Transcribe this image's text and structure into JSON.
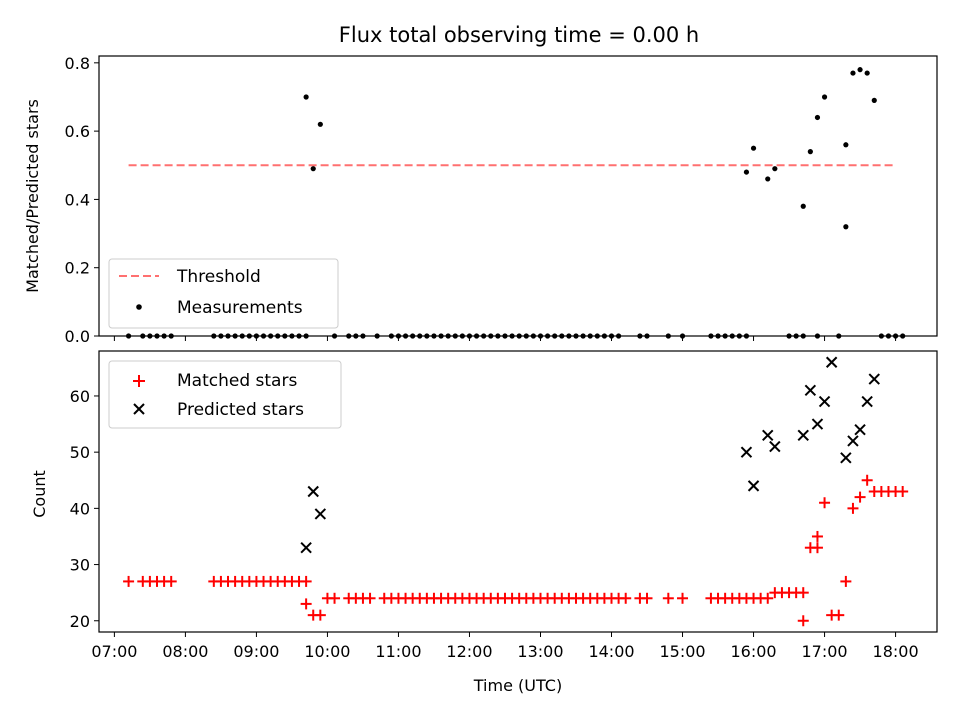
{
  "title": "Flux total observing time = 0.00 h",
  "chart_data": [
    {
      "type": "scatter",
      "ylabel": "Matched/Predicted stars",
      "xlabel": "",
      "xlim": [
        "06:47",
        "18:35"
      ],
      "ylim": [
        0,
        0.82
      ],
      "y_ticks": [
        0.0,
        0.2,
        0.4,
        0.6,
        0.8
      ],
      "y_tick_labels": [
        "0.0",
        "0.2",
        "0.4",
        "0.6",
        "0.8"
      ],
      "legend": {
        "placement": "lower-left",
        "entries": [
          "Threshold",
          "Measurements"
        ]
      },
      "threshold": {
        "name": "Threshold",
        "value": 0.5,
        "x_range": [
          "07:12",
          "18:00"
        ],
        "color": "#ff7070",
        "style": "dashed"
      },
      "series": [
        {
          "name": "Measurements",
          "color": "#000000",
          "marker": "dot",
          "points": [
            [
              "07:12",
              0
            ],
            [
              "07:24",
              0
            ],
            [
              "07:30",
              0
            ],
            [
              "07:36",
              0
            ],
            [
              "07:42",
              0
            ],
            [
              "07:48",
              0
            ],
            [
              "08:24",
              0
            ],
            [
              "08:30",
              0
            ],
            [
              "08:36",
              0
            ],
            [
              "08:42",
              0
            ],
            [
              "08:48",
              0
            ],
            [
              "08:54",
              0
            ],
            [
              "09:00",
              0
            ],
            [
              "09:06",
              0
            ],
            [
              "09:12",
              0
            ],
            [
              "09:18",
              0
            ],
            [
              "09:24",
              0
            ],
            [
              "09:30",
              0
            ],
            [
              "09:36",
              0
            ],
            [
              "09:42",
              0
            ],
            [
              "09:42",
              0.7
            ],
            [
              "09:48",
              0.49
            ],
            [
              "09:54",
              0.62
            ],
            [
              "10:06",
              0
            ],
            [
              "10:18",
              0
            ],
            [
              "10:24",
              0
            ],
            [
              "10:30",
              0
            ],
            [
              "10:42",
              0
            ],
            [
              "10:54",
              0
            ],
            [
              "11:00",
              0
            ],
            [
              "11:06",
              0
            ],
            [
              "11:12",
              0
            ],
            [
              "11:18",
              0
            ],
            [
              "11:24",
              0
            ],
            [
              "11:30",
              0
            ],
            [
              "11:36",
              0
            ],
            [
              "11:42",
              0
            ],
            [
              "11:48",
              0
            ],
            [
              "11:54",
              0
            ],
            [
              "12:00",
              0
            ],
            [
              "12:06",
              0
            ],
            [
              "12:12",
              0
            ],
            [
              "12:18",
              0
            ],
            [
              "12:24",
              0
            ],
            [
              "12:30",
              0
            ],
            [
              "12:36",
              0
            ],
            [
              "12:42",
              0
            ],
            [
              "12:48",
              0
            ],
            [
              "12:54",
              0
            ],
            [
              "13:00",
              0
            ],
            [
              "13:06",
              0
            ],
            [
              "13:12",
              0
            ],
            [
              "13:18",
              0
            ],
            [
              "13:24",
              0
            ],
            [
              "13:30",
              0
            ],
            [
              "13:36",
              0
            ],
            [
              "13:42",
              0
            ],
            [
              "13:48",
              0
            ],
            [
              "13:54",
              0
            ],
            [
              "14:00",
              0
            ],
            [
              "14:06",
              0
            ],
            [
              "14:24",
              0
            ],
            [
              "14:30",
              0
            ],
            [
              "14:48",
              0
            ],
            [
              "15:00",
              0
            ],
            [
              "15:24",
              0
            ],
            [
              "15:30",
              0
            ],
            [
              "15:36",
              0
            ],
            [
              "15:42",
              0
            ],
            [
              "15:48",
              0
            ],
            [
              "15:54",
              0
            ],
            [
              "15:54",
              0.48
            ],
            [
              "16:00",
              0.55
            ],
            [
              "16:12",
              0.46
            ],
            [
              "16:18",
              0.49
            ],
            [
              "16:30",
              0
            ],
            [
              "16:36",
              0
            ],
            [
              "16:42",
              0
            ],
            [
              "16:42",
              0.38
            ],
            [
              "16:48",
              0.54
            ],
            [
              "16:54",
              0
            ],
            [
              "16:54",
              0.64
            ],
            [
              "17:00",
              0.7
            ],
            [
              "17:12",
              0
            ],
            [
              "17:18",
              0.32
            ],
            [
              "17:18",
              0.56
            ],
            [
              "17:24",
              0.77
            ],
            [
              "17:30",
              0.78
            ],
            [
              "17:36",
              0.77
            ],
            [
              "17:42",
              0.69
            ],
            [
              "17:48",
              0
            ],
            [
              "17:54",
              0
            ],
            [
              "18:00",
              0
            ],
            [
              "18:06",
              0
            ]
          ]
        }
      ]
    },
    {
      "type": "scatter",
      "xlabel": "Time (UTC)",
      "ylabel": "Count",
      "xlim": [
        "06:47",
        "18:35"
      ],
      "ylim": [
        18,
        68
      ],
      "x_ticks": [
        "07:00",
        "08:00",
        "09:00",
        "10:00",
        "11:00",
        "12:00",
        "13:00",
        "14:00",
        "15:00",
        "16:00",
        "17:00",
        "18:00"
      ],
      "y_ticks": [
        20,
        30,
        40,
        50,
        60
      ],
      "y_tick_labels": [
        "20",
        "30",
        "40",
        "50",
        "60"
      ],
      "legend": {
        "placement": "top-left",
        "entries": [
          "Matched stars",
          "Predicted stars"
        ]
      },
      "series": [
        {
          "name": "Matched stars",
          "color": "#ff0000",
          "marker": "plus",
          "points": [
            [
              "07:12",
              27
            ],
            [
              "07:24",
              27
            ],
            [
              "07:30",
              27
            ],
            [
              "07:36",
              27
            ],
            [
              "07:42",
              27
            ],
            [
              "07:48",
              27
            ],
            [
              "08:24",
              27
            ],
            [
              "08:30",
              27
            ],
            [
              "08:36",
              27
            ],
            [
              "08:42",
              27
            ],
            [
              "08:48",
              27
            ],
            [
              "08:54",
              27
            ],
            [
              "09:00",
              27
            ],
            [
              "09:06",
              27
            ],
            [
              "09:12",
              27
            ],
            [
              "09:18",
              27
            ],
            [
              "09:24",
              27
            ],
            [
              "09:30",
              27
            ],
            [
              "09:36",
              27
            ],
            [
              "09:42",
              27
            ],
            [
              "09:42",
              23
            ],
            [
              "09:48",
              21
            ],
            [
              "09:54",
              21
            ],
            [
              "10:00",
              24
            ],
            [
              "10:06",
              24
            ],
            [
              "10:18",
              24
            ],
            [
              "10:24",
              24
            ],
            [
              "10:30",
              24
            ],
            [
              "10:36",
              24
            ],
            [
              "10:48",
              24
            ],
            [
              "10:54",
              24
            ],
            [
              "11:00",
              24
            ],
            [
              "11:06",
              24
            ],
            [
              "11:12",
              24
            ],
            [
              "11:18",
              24
            ],
            [
              "11:24",
              24
            ],
            [
              "11:30",
              24
            ],
            [
              "11:36",
              24
            ],
            [
              "11:42",
              24
            ],
            [
              "11:48",
              24
            ],
            [
              "11:54",
              24
            ],
            [
              "12:00",
              24
            ],
            [
              "12:06",
              24
            ],
            [
              "12:12",
              24
            ],
            [
              "12:18",
              24
            ],
            [
              "12:24",
              24
            ],
            [
              "12:30",
              24
            ],
            [
              "12:36",
              24
            ],
            [
              "12:42",
              24
            ],
            [
              "12:48",
              24
            ],
            [
              "12:54",
              24
            ],
            [
              "13:00",
              24
            ],
            [
              "13:06",
              24
            ],
            [
              "13:12",
              24
            ],
            [
              "13:18",
              24
            ],
            [
              "13:24",
              24
            ],
            [
              "13:30",
              24
            ],
            [
              "13:36",
              24
            ],
            [
              "13:42",
              24
            ],
            [
              "13:48",
              24
            ],
            [
              "13:54",
              24
            ],
            [
              "14:00",
              24
            ],
            [
              "14:06",
              24
            ],
            [
              "14:12",
              24
            ],
            [
              "14:24",
              24
            ],
            [
              "14:30",
              24
            ],
            [
              "14:48",
              24
            ],
            [
              "15:00",
              24
            ],
            [
              "15:24",
              24
            ],
            [
              "15:30",
              24
            ],
            [
              "15:36",
              24
            ],
            [
              "15:42",
              24
            ],
            [
              "15:48",
              24
            ],
            [
              "15:54",
              24
            ],
            [
              "16:00",
              24
            ],
            [
              "16:06",
              24
            ],
            [
              "16:12",
              24
            ],
            [
              "16:18",
              25
            ],
            [
              "16:24",
              25
            ],
            [
              "16:30",
              25
            ],
            [
              "16:36",
              25
            ],
            [
              "16:42",
              25
            ],
            [
              "16:42",
              20
            ],
            [
              "16:48",
              33
            ],
            [
              "16:54",
              33
            ],
            [
              "16:54",
              35
            ],
            [
              "17:00",
              41
            ],
            [
              "17:06",
              21
            ],
            [
              "17:12",
              21
            ],
            [
              "17:18",
              27
            ],
            [
              "17:24",
              40
            ],
            [
              "17:30",
              42
            ],
            [
              "17:36",
              45
            ],
            [
              "17:42",
              43
            ],
            [
              "17:48",
              43
            ],
            [
              "17:54",
              43
            ],
            [
              "18:00",
              43
            ],
            [
              "18:06",
              43
            ]
          ]
        },
        {
          "name": "Predicted stars",
          "color": "#000000",
          "marker": "x",
          "points": [
            [
              "09:42",
              33
            ],
            [
              "09:48",
              43
            ],
            [
              "09:54",
              39
            ],
            [
              "15:54",
              50
            ],
            [
              "16:00",
              44
            ],
            [
              "16:12",
              53
            ],
            [
              "16:18",
              51
            ],
            [
              "16:42",
              53
            ],
            [
              "16:48",
              61
            ],
            [
              "16:54",
              55
            ],
            [
              "17:00",
              59
            ],
            [
              "17:06",
              66
            ],
            [
              "17:18",
              49
            ],
            [
              "17:24",
              52
            ],
            [
              "17:30",
              54
            ],
            [
              "17:36",
              59
            ],
            [
              "17:42",
              63
            ]
          ]
        }
      ]
    }
  ]
}
